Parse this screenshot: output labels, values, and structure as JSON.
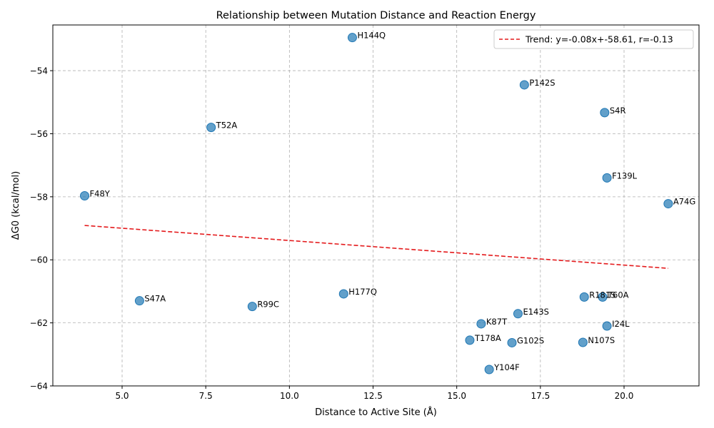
{
  "chart_data": {
    "type": "scatter",
    "title": "Relationship between Mutation Distance and Reaction Energy",
    "xlabel": "Distance to Active Site (Å)",
    "ylabel": "ΔG0 (kcal/mol)",
    "xlim": [
      2.93,
      22.24
    ],
    "ylim": [
      -64.0,
      -52.55
    ],
    "xticks": [
      5.0,
      7.5,
      10.0,
      12.5,
      15.0,
      17.5,
      20.0
    ],
    "xtick_labels": [
      "5.0",
      "7.5",
      "10.0",
      "12.5",
      "15.0",
      "17.5",
      "20.0"
    ],
    "yticks": [
      -64,
      -62,
      -60,
      -58,
      -56,
      -54
    ],
    "ytick_labels": [
      "−64",
      "−62",
      "−60",
      "−58",
      "−56",
      "−54"
    ],
    "grid": true,
    "legend_position": "top-right",
    "point_color": "#1f77b4",
    "trend_color": "#e41a1c",
    "trend": {
      "label": "Trend: y=-0.08x+-58.61, r=-0.13",
      "x": [
        3.88,
        21.32
      ],
      "y": [
        -58.91,
        -60.27
      ]
    },
    "points": [
      {
        "label": "H144Q",
        "x": 11.88,
        "y": -52.95
      },
      {
        "label": "P142S",
        "x": 17.02,
        "y": -54.45
      },
      {
        "label": "S4R",
        "x": 19.42,
        "y": -55.33
      },
      {
        "label": "T52A",
        "x": 7.66,
        "y": -55.8
      },
      {
        "label": "F139L",
        "x": 19.49,
        "y": -57.4
      },
      {
        "label": "F48Y",
        "x": 3.88,
        "y": -57.97
      },
      {
        "label": "A74G",
        "x": 21.32,
        "y": -58.22
      },
      {
        "label": "H177Q",
        "x": 11.62,
        "y": -61.08
      },
      {
        "label": "S47A",
        "x": 5.52,
        "y": -61.3
      },
      {
        "label": "R99C",
        "x": 8.89,
        "y": -61.48
      },
      {
        "label": "R181S",
        "x": 18.81,
        "y": -61.18
      },
      {
        "label": "T60A",
        "x": 19.36,
        "y": -61.18
      },
      {
        "label": "E143S",
        "x": 16.83,
        "y": -61.71
      },
      {
        "label": "K87T",
        "x": 15.73,
        "y": -62.03
      },
      {
        "label": "I24L",
        "x": 19.49,
        "y": -62.1
      },
      {
        "label": "T178A",
        "x": 15.39,
        "y": -62.55
      },
      {
        "label": "G102S",
        "x": 16.65,
        "y": -62.63
      },
      {
        "label": "N107S",
        "x": 18.77,
        "y": -62.62
      },
      {
        "label": "Y104F",
        "x": 15.97,
        "y": -63.48
      }
    ]
  }
}
